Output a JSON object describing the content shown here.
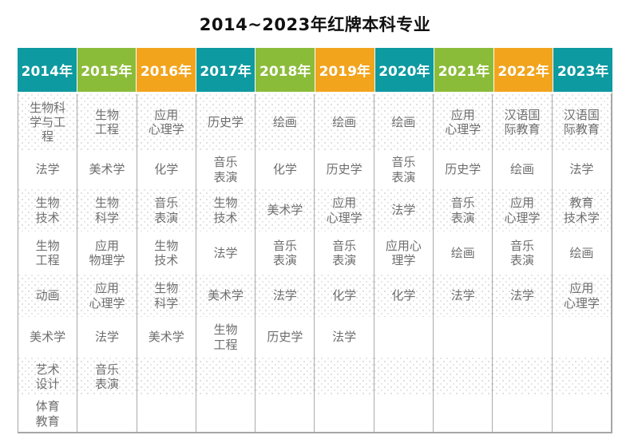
{
  "title": "2014~2023年红牌本科专业",
  "colors": {
    "teal": "#0d9aa0",
    "green": "#8bbc39",
    "orange": "#f2a41c",
    "body_text": "#6e6e6e",
    "outer_border": "#a6a6a6",
    "column_border": "#ababab"
  },
  "table": {
    "headers": [
      {
        "label": "2014年",
        "color": "teal"
      },
      {
        "label": "2015年",
        "color": "green"
      },
      {
        "label": "2016年",
        "color": "orange"
      },
      {
        "label": "2017年",
        "color": "teal"
      },
      {
        "label": "2018年",
        "color": "green"
      },
      {
        "label": "2019年",
        "color": "orange"
      },
      {
        "label": "2020年",
        "color": "teal"
      },
      {
        "label": "2021年",
        "color": "green"
      },
      {
        "label": "2022年",
        "color": "orange"
      },
      {
        "label": "2023年",
        "color": "teal"
      }
    ],
    "rows": [
      [
        "生物科\n学与工\n程",
        "生物\n工程",
        "应用\n心理学",
        "历史学",
        "绘画",
        "绘画",
        "绘画",
        "应用\n心理学",
        "汉语国\n际教育",
        "汉语国\n际教育"
      ],
      [
        "法学",
        "美术学",
        "化学",
        "音乐\n表演",
        "化学",
        "历史学",
        "音乐\n表演",
        "历史学",
        "绘画",
        "法学"
      ],
      [
        "生物\n技术",
        "生物\n科学",
        "音乐\n表演",
        "生物\n技术",
        "美术学",
        "应用\n心理学",
        "法学",
        "音乐\n表演",
        "应用\n心理学",
        "教育\n技术学"
      ],
      [
        "生物\n工程",
        "应用\n物理学",
        "生物\n技术",
        "法学",
        "音乐\n表演",
        "音乐\n表演",
        "应用心\n理学",
        "绘画",
        "音乐\n表演",
        "绘画"
      ],
      [
        "动画",
        "应用\n心理学",
        "生物\n科学",
        "美术学",
        "法学",
        "化学",
        "化学",
        "法学",
        "法学",
        "应用\n心理学"
      ],
      [
        "美术学",
        "法学",
        "美术学",
        "生物\n工程",
        "历史学",
        "法学",
        "",
        "",
        "",
        ""
      ],
      [
        "艺术\n设计",
        "音乐\n表演",
        "",
        "",
        "",
        "",
        "",
        "",
        "",
        ""
      ],
      [
        "体育\n教育",
        "",
        "",
        "",
        "",
        "",
        "",
        "",
        "",
        ""
      ]
    ]
  }
}
